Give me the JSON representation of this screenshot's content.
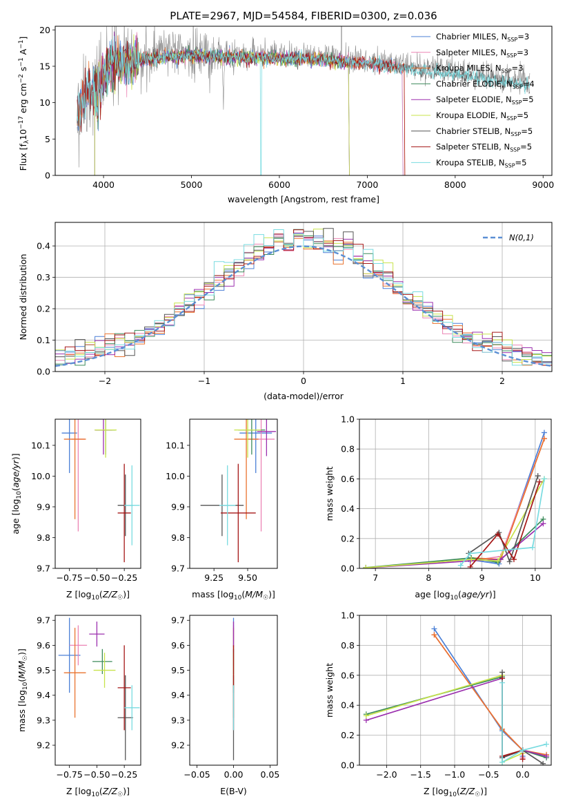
{
  "page": {
    "title": "PLATE=2967, MJD=54584, FIBERID=0300, z=0.036"
  },
  "series": [
    {
      "name": "Chabrier MILES, N_SSP=3",
      "label_main": "Chabrier MILES, N",
      "label_sub": "SSP",
      "label_tail": "=3",
      "color": "#4a7fd6"
    },
    {
      "name": "Salpeter MILES, N_SSP=3",
      "label_main": "Salpeter MILES, N",
      "label_sub": "SSP",
      "label_tail": "=3",
      "color": "#ec84b4"
    },
    {
      "name": "Kroupa MILES, N_SSP=3",
      "label_main": "Kroupa MILES, N",
      "label_sub": "SSP",
      "label_tail": "=3",
      "color": "#e9722d"
    },
    {
      "name": "Chabrier ELODIE, N_SSP=4",
      "label_main": "Chabrier ELODIE, N",
      "label_sub": "SSP",
      "label_tail": "=4",
      "color": "#3b8a5a"
    },
    {
      "name": "Salpeter ELODIE, N_SSP=5",
      "label_main": "Salpeter ELODIE, N",
      "label_sub": "SSP",
      "label_tail": "=5",
      "color": "#9b2fae"
    },
    {
      "name": "Kroupa ELODIE, N_SSP=5",
      "label_main": "Kroupa ELODIE, N",
      "label_sub": "SSP",
      "label_tail": "=5",
      "color": "#c7e34a"
    },
    {
      "name": "Chabrier STELIB, N_SSP=5",
      "label_main": "Chabrier STELIB, N",
      "label_sub": "SSP",
      "label_tail": "=5",
      "color": "#555555"
    },
    {
      "name": "Salpeter STELIB, N_SSP=5",
      "label_main": "Salpeter STELIB, N",
      "label_sub": "SSP",
      "label_tail": "=5",
      "color": "#a51616"
    },
    {
      "name": "Kroupa STELIB, N_SSP=5",
      "label_main": "Kroupa STELIB, N",
      "label_sub": "SSP",
      "label_tail": "=5",
      "color": "#78dbe0"
    }
  ],
  "chart_data": [
    {
      "id": "spectrum",
      "type": "line",
      "xlabel": "wavelength [Angstrom, rest frame]",
      "ylabel": "Flux [f_λ 10^-17 erg cm^-2 s^-1 A^-1]",
      "ylabel_parts": {
        "pre": "Flux [f",
        "lam": "λ",
        "mid": "10",
        "e1": "−17",
        "mid2": " erg cm",
        "e2": "−2",
        "mid3": " s",
        "e3": "−1",
        "mid4": " A",
        "e4": "−1",
        "post": "]"
      },
      "xlim": [
        3450,
        9100
      ],
      "ylim": [
        0,
        20.5
      ],
      "xticks": [
        4000,
        5000,
        6000,
        7000,
        8000,
        9000
      ],
      "yticks": [
        0,
        5,
        10,
        15,
        20
      ],
      "grid": false,
      "legend": "top-right",
      "continuum": {
        "x": [
          3700,
          3800,
          3900,
          4000,
          4100,
          4300,
          4500,
          4800,
          5000,
          5300,
          5600,
          6000,
          6300,
          6600,
          7000,
          7300,
          7600,
          8000,
          8300,
          8600,
          8850
        ],
        "y": [
          9.5,
          11.5,
          12.5,
          14.5,
          15.8,
          16.0,
          16.5,
          16.8,
          17.0,
          16.8,
          16.7,
          16.6,
          16.5,
          16.2,
          15.9,
          15.4,
          14.9,
          14.4,
          13.8,
          13.3,
          12.8
        ]
      },
      "model_end": {
        "Chabrier MILES": 7400,
        "Salpeter MILES": 7400,
        "Kroupa MILES": 7420,
        "Chabrier ELODIE": 6790,
        "Salpeter ELODIE": 6790,
        "Kroupa ELODIE": 6790,
        "Salpeter STELIB": 7420
      },
      "model_start": {
        "Chabrier ELODIE": 3900,
        "Salpeter ELODIE": 3900,
        "Kroupa ELODIE": 3900
      }
    },
    {
      "id": "residuals",
      "type": "histogram",
      "xlabel": "(data-model)/error",
      "ylabel": "Normed distribution",
      "xlim": [
        -2.5,
        2.5
      ],
      "ylim": [
        0,
        0.475
      ],
      "xticks": [
        -2,
        -1,
        0,
        1,
        2
      ],
      "yticks": [
        0.0,
        0.1,
        0.2,
        0.3,
        0.4
      ],
      "grid": true,
      "legend": "top-right",
      "reference": {
        "label": "N(0,1)",
        "color": "#5b8fd4"
      },
      "bin_width": 0.1
    },
    {
      "id": "age-vs-Z",
      "type": "errorbar",
      "xlabel": "Z [log10(Z/Z☉)]",
      "ylabel": "age [log10(age/yr)]",
      "xlim": [
        -0.88,
        -0.1
      ],
      "ylim": [
        9.7,
        10.185
      ],
      "xticks": [
        -0.75,
        -0.5,
        -0.25
      ],
      "xticklabels": [
        "−0.75",
        "−0.50",
        "−0.25"
      ],
      "yticks": [
        9.7,
        9.8,
        9.9,
        10.0,
        10.1
      ],
      "points": [
        {
          "x": -0.75,
          "y": 10.14,
          "xerr": 0.07,
          "yerr": 0.13
        },
        {
          "x": -0.67,
          "y": 10.12,
          "xerr": 0.06,
          "yerr": 0.3
        },
        {
          "x": -0.7,
          "y": 10.12,
          "xerr": 0.1,
          "yerr": 0.26
        },
        {
          "x": -0.42,
          "y": 10.15,
          "xerr": 0.09,
          "yerr": 0.08
        },
        {
          "x": -0.44,
          "y": 10.15,
          "xerr": 0.08,
          "yerr": 0.08
        },
        {
          "x": -0.42,
          "y": 10.15,
          "xerr": 0.1,
          "yerr": 0.09
        },
        {
          "x": -0.24,
          "y": 9.905,
          "xerr": 0.07,
          "yerr": 0.1
        },
        {
          "x": -0.25,
          "y": 9.88,
          "xerr": 0.06,
          "yerr": 0.16
        },
        {
          "x": -0.18,
          "y": 9.905,
          "xerr": 0.07,
          "yerr": 0.13
        }
      ]
    },
    {
      "id": "age-vs-mass",
      "type": "errorbar",
      "xlabel": "mass [log10(M/M☉)]",
      "ylabel": "",
      "xlim": [
        9.07,
        9.72
      ],
      "ylim": [
        9.7,
        10.185
      ],
      "xticks": [
        9.25,
        9.5
      ],
      "xticklabels": [
        "9.25",
        "9.50"
      ],
      "yticks": [
        9.7,
        9.8,
        9.9,
        10.0,
        10.1
      ],
      "points": [
        {
          "x": 9.56,
          "y": 10.14,
          "xerr": 0.12,
          "yerr": 0.13
        },
        {
          "x": 9.6,
          "y": 10.12,
          "xerr": 0.1,
          "yerr": 0.3
        },
        {
          "x": 9.49,
          "y": 10.12,
          "xerr": 0.09,
          "yerr": 0.26
        },
        {
          "x": 9.53,
          "y": 10.15,
          "xerr": 0.1,
          "yerr": 0.08
        },
        {
          "x": 9.64,
          "y": 10.145,
          "xerr": 0.07,
          "yerr": 0.08
        },
        {
          "x": 9.5,
          "y": 10.15,
          "xerr": 0.1,
          "yerr": 0.09
        },
        {
          "x": 9.31,
          "y": 9.905,
          "xerr": 0.16,
          "yerr": 0.1
        },
        {
          "x": 9.43,
          "y": 9.88,
          "xerr": 0.13,
          "yerr": 0.16
        },
        {
          "x": 9.35,
          "y": 9.905,
          "xerr": 0.06,
          "yerr": 0.13
        }
      ]
    },
    {
      "id": "weight-vs-age",
      "type": "line",
      "xlabel": "age [log10(age/yr)]",
      "ylabel": "mass weight",
      "xlim": [
        6.7,
        10.3
      ],
      "ylim": [
        0,
        1.0
      ],
      "xticks": [
        7,
        8,
        9,
        10
      ],
      "yticks": [
        0.0,
        0.2,
        0.4,
        0.6,
        0.8,
        1.0
      ],
      "grid": true,
      "lines": [
        {
          "x": [
            8.75,
            9.32,
            10.17
          ],
          "y": [
            0.06,
            0.03,
            0.91
          ]
        },
        {
          "x": [
            8.78,
            9.35,
            10.17
          ],
          "y": [
            0.05,
            0.08,
            0.87
          ]
        },
        {
          "x": [
            8.8,
            9.35,
            10.17
          ],
          "y": [
            0.07,
            0.06,
            0.87
          ]
        },
        {
          "x": [
            6.82,
            8.8,
            9.3,
            10.15
          ],
          "y": [
            0.005,
            0.07,
            0.04,
            0.33
          ]
        },
        {
          "x": [
            6.82,
            8.78,
            9.35,
            10.15
          ],
          "y": [
            0.003,
            0.05,
            0.06,
            0.3
          ]
        },
        {
          "x": [
            6.82,
            8.8,
            9.3,
            10.17
          ],
          "y": [
            0.004,
            0.06,
            0.05,
            0.6
          ]
        },
        {
          "x": [
            8.75,
            9.32,
            9.52,
            10.05
          ],
          "y": [
            0.1,
            0.24,
            0.045,
            0.62
          ]
        },
        {
          "x": [
            8.78,
            9.3,
            9.6,
            10.08
          ],
          "y": [
            0.01,
            0.23,
            0.06,
            0.58
          ]
        },
        {
          "x": [
            8.6,
            8.78,
            9.95,
            10.17
          ],
          "y": [
            0.02,
            0.1,
            0.14,
            0.6
          ]
        }
      ]
    },
    {
      "id": "mass-vs-Z",
      "type": "errorbar",
      "xlabel": "Z [log10(Z/Z☉)]",
      "ylabel": "mass [log10(M/M☉)]",
      "xlim": [
        -0.88,
        -0.1
      ],
      "ylim": [
        9.12,
        9.72
      ],
      "xticks": [
        -0.75,
        -0.5,
        -0.25
      ],
      "xticklabels": [
        "−0.75",
        "−0.50",
        "−0.25"
      ],
      "yticks": [
        9.2,
        9.3,
        9.4,
        9.5,
        9.6,
        9.7
      ],
      "points": [
        {
          "x": -0.75,
          "y": 9.56,
          "xerr": 0.1,
          "yerr": 0.15
        },
        {
          "x": -0.67,
          "y": 9.6,
          "xerr": 0.08,
          "yerr": 0.08
        },
        {
          "x": -0.7,
          "y": 9.49,
          "xerr": 0.1,
          "yerr": 0.18
        },
        {
          "x": -0.45,
          "y": 9.535,
          "xerr": 0.09,
          "yerr": 0.05
        },
        {
          "x": -0.5,
          "y": 9.645,
          "xerr": 0.07,
          "yerr": 0.05
        },
        {
          "x": -0.43,
          "y": 9.5,
          "xerr": 0.1,
          "yerr": 0.07
        },
        {
          "x": -0.24,
          "y": 9.31,
          "xerr": 0.07,
          "yerr": 0.17
        },
        {
          "x": -0.25,
          "y": 9.43,
          "xerr": 0.06,
          "yerr": 0.17
        },
        {
          "x": -0.18,
          "y": 9.35,
          "xerr": 0.07,
          "yerr": 0.09
        }
      ]
    },
    {
      "id": "mass-vs-ebv",
      "type": "errorbar",
      "xlabel": "E(B-V)",
      "ylabel": "",
      "xlim": [
        -0.06,
        0.06
      ],
      "ylim": [
        9.12,
        9.72
      ],
      "xticks": [
        -0.05,
        0.0,
        0.05
      ],
      "xticklabels": [
        "−0.05",
        "0.00",
        "0.05"
      ],
      "yticks": [
        9.2,
        9.3,
        9.4,
        9.5,
        9.6,
        9.7
      ],
      "points": [
        {
          "x": 0,
          "y": 9.56,
          "xerr": 0,
          "yerr": 0.15
        },
        {
          "x": 0,
          "y": 9.6,
          "xerr": 0,
          "yerr": 0.08
        },
        {
          "x": 0,
          "y": 9.49,
          "xerr": 0,
          "yerr": 0.18
        },
        {
          "x": 0,
          "y": 9.535,
          "xerr": 0,
          "yerr": 0.05
        },
        {
          "x": 0,
          "y": 9.645,
          "xerr": 0,
          "yerr": 0.05
        },
        {
          "x": 0,
          "y": 9.5,
          "xerr": 0,
          "yerr": 0.07
        },
        {
          "x": 0,
          "y": 9.31,
          "xerr": 0,
          "yerr": 0.17
        },
        {
          "x": 0,
          "y": 9.43,
          "xerr": 0,
          "yerr": 0.17
        },
        {
          "x": 0,
          "y": 9.35,
          "xerr": 0,
          "yerr": 0.09
        }
      ]
    },
    {
      "id": "weight-vs-Z",
      "type": "line",
      "xlabel": "Z [log10(Z/Z☉)]",
      "ylabel": "mass weight",
      "xlim": [
        -2.4,
        0.42
      ],
      "ylim": [
        0,
        1.0
      ],
      "xticks": [
        -2.0,
        -1.5,
        -1.0,
        -0.5,
        0.0
      ],
      "xticklabels": [
        "−2.0",
        "−1.5",
        "−1.0",
        "−0.5",
        "0.0"
      ],
      "yticks": [
        0.0,
        0.2,
        0.4,
        0.6,
        0.8,
        1.0
      ],
      "grid": true,
      "lines": [
        {
          "x": [
            -1.3,
            -0.3,
            0.0,
            0.0
          ],
          "y": [
            0.91,
            0.23,
            0.1,
            0.06
          ]
        },
        {
          "x": [
            -1.3,
            -0.3,
            0.0,
            0.0
          ],
          "y": [
            0.87,
            0.24,
            0.1,
            0.05
          ]
        },
        {
          "x": [
            -1.3,
            -0.3,
            0.0,
            0.35
          ],
          "y": [
            0.87,
            0.24,
            0.1,
            0.07
          ]
        },
        {
          "x": [
            -2.3,
            -0.3,
            -0.3,
            0.0,
            0.35
          ],
          "y": [
            0.34,
            0.59,
            0.05,
            0.1,
            0.05
          ]
        },
        {
          "x": [
            -2.3,
            -0.3,
            -0.3,
            0.0,
            0.35
          ],
          "y": [
            0.3,
            0.58,
            0.05,
            0.1,
            0.06
          ]
        },
        {
          "x": [
            -2.3,
            -0.3,
            -0.3,
            0.0
          ],
          "y": [
            0.33,
            0.6,
            0.02,
            0.08
          ]
        },
        {
          "x": [
            -0.3,
            -0.3,
            0.0,
            0.3
          ],
          "y": [
            0.62,
            0.05,
            0.1,
            0.01
          ]
        },
        {
          "x": [
            -0.3,
            -0.3,
            0.0,
            0.0
          ],
          "y": [
            0.58,
            0.06,
            0.1,
            0.04
          ]
        },
        {
          "x": [
            -0.3,
            -0.3,
            0.0,
            0.35
          ],
          "y": [
            0.55,
            0.02,
            0.1,
            0.14
          ]
        }
      ]
    }
  ]
}
